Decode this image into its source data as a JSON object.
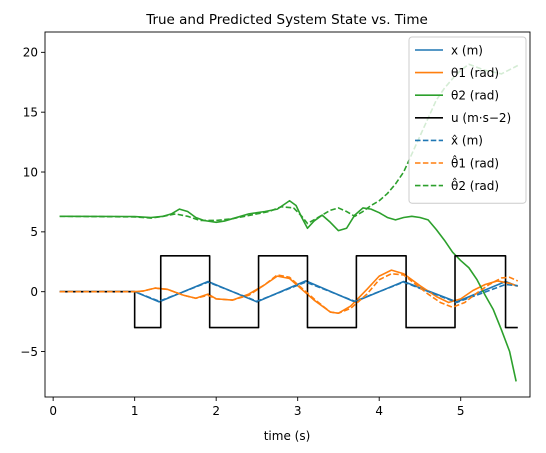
{
  "chart_data": {
    "type": "line",
    "title": "True and Predicted System State vs. Time",
    "xlabel": "time (s)",
    "ylabel": "",
    "xlim": [
      -0.1,
      5.85
    ],
    "ylim": [
      -8.8,
      21.7
    ],
    "xticks": [
      0,
      1,
      2,
      3,
      4,
      5
    ],
    "yticks": [
      -5,
      0,
      5,
      10,
      15,
      20
    ],
    "tick_labels_x": [
      "0",
      "1",
      "2",
      "3",
      "4",
      "5"
    ],
    "tick_labels_y": [
      "−5",
      "0",
      "5",
      "10",
      "15",
      "20"
    ],
    "grid": false,
    "legend_position": "top-right",
    "legend": [
      {
        "label": "x (m)",
        "color": "#1f77b4",
        "dash": "solid"
      },
      {
        "label": "θ1 (rad)",
        "color": "#ff7f0e",
        "dash": "solid"
      },
      {
        "label": "θ2 (rad)",
        "color": "#2ca02c",
        "dash": "solid"
      },
      {
        "label": "u (m·s−2)",
        "color": "#000000",
        "dash": "solid"
      },
      {
        "label": "x̂ (m)",
        "color": "#1f77b4",
        "dash": "dashed"
      },
      {
        "label": "θ̂1 (rad)",
        "color": "#ff7f0e",
        "dash": "dashed"
      },
      {
        "label": "θ̂2 (rad)",
        "color": "#2ca02c",
        "dash": "dashed"
      }
    ],
    "series": [
      {
        "color": "#1f77b4",
        "dash": "solid",
        "points": [
          [
            0.08,
            0
          ],
          [
            1.0,
            0
          ],
          [
            1.3,
            -0.85
          ],
          [
            1.9,
            0.85
          ],
          [
            2.5,
            -0.85
          ],
          [
            3.1,
            0.9
          ],
          [
            3.7,
            -0.85
          ],
          [
            4.3,
            0.85
          ],
          [
            4.95,
            -0.85
          ],
          [
            5.55,
            0.85
          ],
          [
            5.7,
            0.45
          ]
        ]
      },
      {
        "color": "#ff7f0e",
        "dash": "solid",
        "points": [
          [
            0.08,
            0
          ],
          [
            1.0,
            0
          ],
          [
            1.1,
            0.05
          ],
          [
            1.25,
            0.3
          ],
          [
            1.4,
            0.2
          ],
          [
            1.6,
            -0.3
          ],
          [
            1.75,
            -0.55
          ],
          [
            1.9,
            -0.2
          ],
          [
            2.0,
            -0.6
          ],
          [
            2.2,
            -0.7
          ],
          [
            2.4,
            -0.2
          ],
          [
            2.6,
            0.6
          ],
          [
            2.75,
            1.3
          ],
          [
            2.9,
            1.1
          ],
          [
            3.05,
            0.2
          ],
          [
            3.2,
            -0.7
          ],
          [
            3.4,
            -1.7
          ],
          [
            3.5,
            -1.8
          ],
          [
            3.65,
            -1.2
          ],
          [
            3.85,
            0.2
          ],
          [
            4.0,
            1.3
          ],
          [
            4.15,
            1.8
          ],
          [
            4.3,
            1.5
          ],
          [
            4.5,
            0.5
          ],
          [
            4.7,
            -0.4
          ],
          [
            4.85,
            -0.9
          ],
          [
            5.0,
            -0.6
          ],
          [
            5.15,
            0.1
          ],
          [
            5.3,
            0.6
          ],
          [
            5.45,
            0.9
          ],
          [
            5.6,
            0.7
          ],
          [
            5.7,
            0.45
          ]
        ]
      },
      {
        "color": "#2ca02c",
        "dash": "solid",
        "points": [
          [
            0.08,
            6.3
          ],
          [
            1.0,
            6.28
          ],
          [
            1.2,
            6.2
          ],
          [
            1.35,
            6.3
          ],
          [
            1.45,
            6.5
          ],
          [
            1.55,
            6.9
          ],
          [
            1.65,
            6.7
          ],
          [
            1.75,
            6.2
          ],
          [
            1.85,
            5.95
          ],
          [
            2.0,
            5.8
          ],
          [
            2.1,
            5.9
          ],
          [
            2.2,
            6.1
          ],
          [
            2.3,
            6.3
          ],
          [
            2.4,
            6.5
          ],
          [
            2.5,
            6.6
          ],
          [
            2.6,
            6.7
          ],
          [
            2.75,
            6.9
          ],
          [
            2.9,
            7.6
          ],
          [
            2.98,
            7.2
          ],
          [
            3.05,
            6.2
          ],
          [
            3.12,
            5.3
          ],
          [
            3.2,
            5.9
          ],
          [
            3.3,
            6.4
          ],
          [
            3.4,
            5.8
          ],
          [
            3.5,
            5.1
          ],
          [
            3.6,
            5.3
          ],
          [
            3.7,
            6.4
          ],
          [
            3.8,
            7.0
          ],
          [
            3.9,
            6.9
          ],
          [
            4.0,
            6.6
          ],
          [
            4.1,
            6.2
          ],
          [
            4.2,
            6.0
          ],
          [
            4.3,
            6.2
          ],
          [
            4.4,
            6.3
          ],
          [
            4.5,
            6.2
          ],
          [
            4.6,
            6.0
          ],
          [
            4.7,
            5.2
          ],
          [
            4.8,
            4.3
          ],
          [
            4.9,
            3.3
          ],
          [
            5.0,
            2.6
          ],
          [
            5.1,
            2.0
          ],
          [
            5.2,
            1.0
          ],
          [
            5.3,
            -0.3
          ],
          [
            5.4,
            -1.5
          ],
          [
            5.5,
            -3.2
          ],
          [
            5.6,
            -5.0
          ],
          [
            5.68,
            -7.5
          ]
        ]
      },
      {
        "color": "#000000",
        "dash": "solid",
        "step": true,
        "points": [
          [
            0.08,
            0
          ],
          [
            1.0,
            0
          ],
          [
            1.0,
            -3
          ],
          [
            1.32,
            -3
          ],
          [
            1.32,
            3
          ],
          [
            1.92,
            3
          ],
          [
            1.92,
            -3
          ],
          [
            2.52,
            -3
          ],
          [
            2.52,
            3
          ],
          [
            3.12,
            3
          ],
          [
            3.12,
            -3
          ],
          [
            3.72,
            -3
          ],
          [
            3.72,
            3
          ],
          [
            4.33,
            3
          ],
          [
            4.33,
            -3
          ],
          [
            4.93,
            -3
          ],
          [
            4.93,
            3
          ],
          [
            5.55,
            3
          ],
          [
            5.55,
            -3
          ],
          [
            5.7,
            -3
          ]
        ]
      },
      {
        "color": "#1f77b4",
        "dash": "dashed",
        "points": [
          [
            0.08,
            0
          ],
          [
            1.0,
            0
          ],
          [
            1.3,
            -0.8
          ],
          [
            1.9,
            0.8
          ],
          [
            2.5,
            -0.8
          ],
          [
            3.1,
            0.8
          ],
          [
            3.7,
            -0.8
          ],
          [
            4.3,
            0.8
          ],
          [
            4.95,
            -0.9
          ],
          [
            5.55,
            0.6
          ],
          [
            5.7,
            0.5
          ]
        ]
      },
      {
        "color": "#ff7f0e",
        "dash": "dashed",
        "points": [
          [
            0.08,
            0
          ],
          [
            1.0,
            0
          ],
          [
            1.1,
            0.05
          ],
          [
            1.25,
            0.3
          ],
          [
            1.4,
            0.2
          ],
          [
            1.6,
            -0.3
          ],
          [
            1.75,
            -0.55
          ],
          [
            1.9,
            -0.3
          ],
          [
            2.0,
            -0.6
          ],
          [
            2.2,
            -0.7
          ],
          [
            2.4,
            -0.3
          ],
          [
            2.6,
            0.6
          ],
          [
            2.75,
            1.4
          ],
          [
            2.9,
            1.2
          ],
          [
            3.05,
            0.3
          ],
          [
            3.2,
            -0.6
          ],
          [
            3.4,
            -1.7
          ],
          [
            3.5,
            -1.8
          ],
          [
            3.65,
            -1.4
          ],
          [
            3.85,
            -0.2
          ],
          [
            4.0,
            1.0
          ],
          [
            4.15,
            1.5
          ],
          [
            4.3,
            1.4
          ],
          [
            4.45,
            0.6
          ],
          [
            4.6,
            -0.2
          ],
          [
            4.75,
            -0.9
          ],
          [
            4.9,
            -1.3
          ],
          [
            5.05,
            -0.9
          ],
          [
            5.2,
            -0.1
          ],
          [
            5.35,
            0.6
          ],
          [
            5.5,
            1.15
          ],
          [
            5.6,
            1.2
          ],
          [
            5.7,
            0.9
          ]
        ]
      },
      {
        "color": "#2ca02c",
        "dash": "dashed",
        "points": [
          [
            0.08,
            6.3
          ],
          [
            1.0,
            6.25
          ],
          [
            1.2,
            6.15
          ],
          [
            1.35,
            6.3
          ],
          [
            1.5,
            6.5
          ],
          [
            1.65,
            6.3
          ],
          [
            1.8,
            5.95
          ],
          [
            2.0,
            5.95
          ],
          [
            2.2,
            6.1
          ],
          [
            2.35,
            6.3
          ],
          [
            2.5,
            6.5
          ],
          [
            2.65,
            6.7
          ],
          [
            2.8,
            7.1
          ],
          [
            2.95,
            7.0
          ],
          [
            3.05,
            6.3
          ],
          [
            3.12,
            5.7
          ],
          [
            3.25,
            6.2
          ],
          [
            3.4,
            6.8
          ],
          [
            3.5,
            7.0
          ],
          [
            3.6,
            6.7
          ],
          [
            3.7,
            6.3
          ],
          [
            3.8,
            6.7
          ],
          [
            3.9,
            7.2
          ],
          [
            4.0,
            7.6
          ],
          [
            4.1,
            8.2
          ],
          [
            4.2,
            9.0
          ],
          [
            4.3,
            10.0
          ],
          [
            4.4,
            11.5
          ],
          [
            4.5,
            13.0
          ],
          [
            4.6,
            14.5
          ],
          [
            4.7,
            16.0
          ],
          [
            4.8,
            17.0
          ],
          [
            4.9,
            17.8
          ],
          [
            5.0,
            18.5
          ],
          [
            5.1,
            19.0
          ],
          [
            5.3,
            18.5
          ],
          [
            5.5,
            18.2
          ],
          [
            5.7,
            18.9
          ]
        ]
      }
    ]
  }
}
